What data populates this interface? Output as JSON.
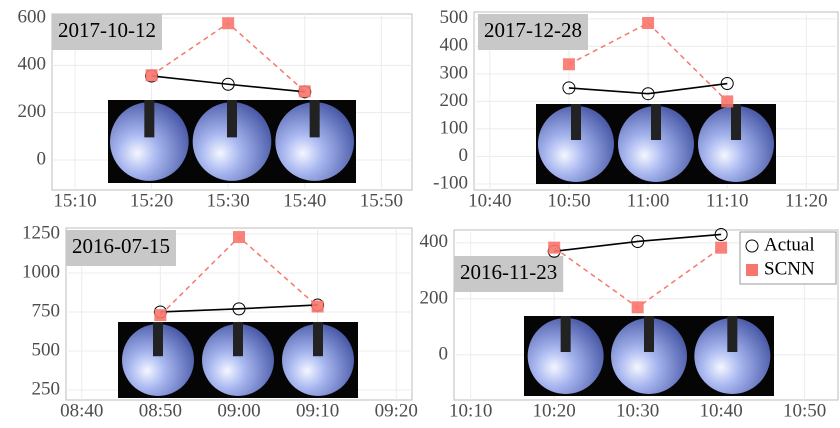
{
  "chart_data": [
    {
      "type": "line",
      "title": "2017-10-12",
      "x": [
        "15:20",
        "15:30",
        "15:40"
      ],
      "series": [
        {
          "color": "#000000",
          "values": [
            355,
            320,
            288
          ]
        },
        {
          "color": "#f8766d",
          "values": [
            358,
            578,
            290
          ]
        }
      ],
      "xlim": [
        "15:07",
        "15:54"
      ],
      "xticks": [
        "15:10",
        "15:20",
        "15:30",
        "15:40",
        "15:50"
      ],
      "ylim": [
        -127,
        617
      ],
      "yticks": [
        0,
        200,
        400,
        600
      ],
      "grid": true
    },
    {
      "type": "line",
      "title": "2017-12-28",
      "x": [
        "10:50",
        "11:00",
        "11:10"
      ],
      "series": [
        {
          "color": "#000000",
          "values": [
            249,
            228,
            265
          ]
        },
        {
          "color": "#f8766d",
          "values": [
            335,
            485,
            200
          ]
        }
      ],
      "xlim": [
        "10:38",
        "11:24"
      ],
      "xticks": [
        "10:40",
        "10:50",
        "11:00",
        "11:10",
        "11:20"
      ],
      "ylim": [
        -122,
        525
      ],
      "yticks": [
        -100,
        0,
        100,
        200,
        300,
        400,
        500
      ],
      "grid": true
    },
    {
      "type": "line",
      "title": "2016-07-15",
      "x": [
        "08:50",
        "09:00",
        "09:10"
      ],
      "series": [
        {
          "color": "#000000",
          "values": [
            750,
            770,
            795
          ]
        },
        {
          "color": "#f8766d",
          "values": [
            730,
            1230,
            785
          ]
        }
      ],
      "xlim": [
        "08:38",
        "09:22"
      ],
      "xticks": [
        "08:40",
        "08:50",
        "09:00",
        "09:10",
        "09:20"
      ],
      "ylim": [
        186,
        1288
      ],
      "yticks": [
        250,
        500,
        750,
        1000,
        1250
      ],
      "grid": true
    },
    {
      "type": "line",
      "title": "2016-11-23",
      "x": [
        "10:20",
        "10:30",
        "10:40"
      ],
      "series": [
        {
          "name": "Actual",
          "color": "#000000",
          "values": [
            370,
            405,
            430
          ]
        },
        {
          "name": "SCNN",
          "color": "#f8766d",
          "values": [
            383,
            170,
            383
          ]
        }
      ],
      "xlim": [
        "10:08",
        "10:54"
      ],
      "xticks": [
        "10:10",
        "10:20",
        "10:30",
        "10:40",
        "10:50"
      ],
      "ylim": [
        -161,
        446
      ],
      "yticks": [
        0,
        200,
        400
      ],
      "grid": true,
      "legend": "top-right"
    }
  ]
}
